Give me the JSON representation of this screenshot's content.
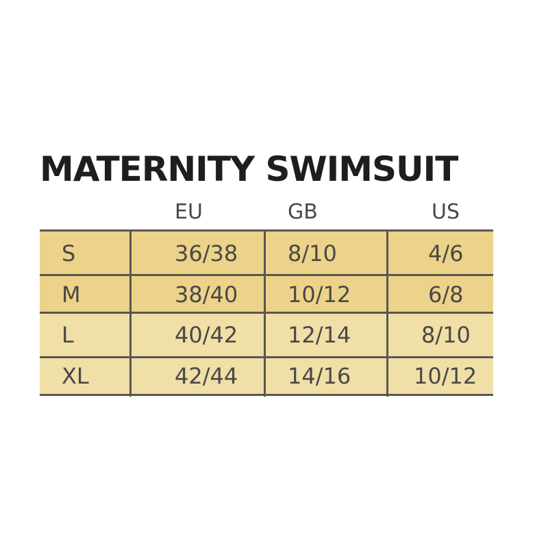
{
  "title": "MATERNITY SWIMSUIT",
  "colors": {
    "row_dark": "#ecd389",
    "row_light": "#f0dfa6",
    "lines": "#5a5650"
  },
  "headers": [
    "EU",
    "GB",
    "US"
  ],
  "rows": [
    {
      "size": "S",
      "eu": "36/38",
      "gb": "8/10",
      "us": "4/6"
    },
    {
      "size": "M",
      "eu": "38/40",
      "gb": "10/12",
      "us": "6/8"
    },
    {
      "size": "L",
      "eu": "40/42",
      "gb": "12/14",
      "us": "8/10"
    },
    {
      "size": "XL",
      "eu": "42/44",
      "gb": "14/16",
      "us": "10/12"
    }
  ]
}
